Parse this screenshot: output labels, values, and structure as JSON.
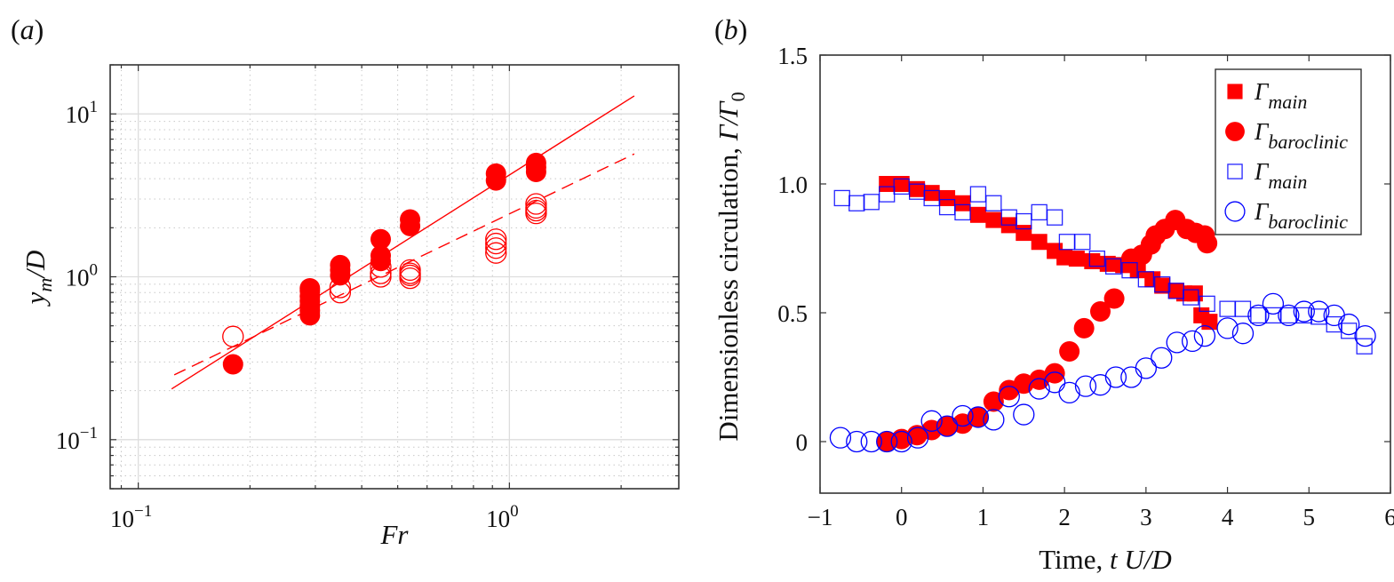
{
  "chart_data": [
    {
      "panel": "(a)",
      "type": "scatter",
      "xscale": "log",
      "yscale": "log",
      "xlabel": "Fr",
      "ylabel": "y_m/D",
      "xlim": [
        0.084,
        2.86
      ],
      "ylim": [
        0.05,
        20
      ],
      "xticks": [
        {
          "value": 0.1,
          "base": "10",
          "exp": "−1"
        },
        {
          "value": 1,
          "base": "10",
          "exp": "0"
        }
      ],
      "yticks": [
        {
          "value": 0.1,
          "base": "10",
          "exp": "−1"
        },
        {
          "value": 1,
          "base": "10",
          "exp": "0"
        },
        {
          "value": 10,
          "base": "10",
          "exp": "1"
        }
      ],
      "grid": true,
      "color": "#ff0000",
      "series": [
        {
          "name": "filled",
          "marker": "filled-circle",
          "points": [
            [
              0.18,
              0.29
            ],
            [
              0.29,
              0.58
            ],
            [
              0.29,
              0.62
            ],
            [
              0.29,
              0.66
            ],
            [
              0.29,
              0.71
            ],
            [
              0.29,
              0.76
            ],
            [
              0.29,
              0.82
            ],
            [
              0.29,
              0.85
            ],
            [
              0.35,
              1.02
            ],
            [
              0.35,
              1.1
            ],
            [
              0.35,
              1.18
            ],
            [
              0.45,
              1.25
            ],
            [
              0.45,
              1.35
            ],
            [
              0.45,
              1.7
            ],
            [
              0.54,
              2.05
            ],
            [
              0.54,
              2.25
            ],
            [
              0.92,
              3.9
            ],
            [
              0.92,
              4.3
            ],
            [
              1.18,
              4.4
            ],
            [
              1.18,
              4.7
            ],
            [
              1.18,
              5.0
            ]
          ]
        },
        {
          "name": "open",
          "marker": "open-circle",
          "points": [
            [
              0.18,
              0.43
            ],
            [
              0.35,
              0.8
            ],
            [
              0.35,
              0.86
            ],
            [
              0.45,
              1.0
            ],
            [
              0.45,
              1.05
            ],
            [
              0.45,
              1.15
            ],
            [
              0.54,
              0.98
            ],
            [
              0.54,
              1.02
            ],
            [
              0.54,
              1.05
            ],
            [
              0.54,
              1.1
            ],
            [
              0.92,
              1.4
            ],
            [
              0.92,
              1.5
            ],
            [
              0.92,
              1.6
            ],
            [
              0.92,
              1.7
            ],
            [
              1.18,
              2.45
            ],
            [
              1.18,
              2.55
            ],
            [
              1.18,
              2.65
            ],
            [
              1.18,
              2.8
            ]
          ]
        },
        {
          "name": "fit-solid",
          "type": "line",
          "style": "solid",
          "points": [
            [
              0.123,
              0.205
            ],
            [
              2.17,
              12.9
            ]
          ]
        },
        {
          "name": "fit-dashed",
          "type": "line",
          "style": "dashed",
          "points": [
            [
              0.125,
              0.25
            ],
            [
              2.17,
              5.68
            ]
          ]
        }
      ]
    },
    {
      "panel": "(b)",
      "type": "scatter",
      "xlabel": "Time, t U/D",
      "xlabel_parts": {
        "prefix": "Time, ",
        "italic": "t U/D"
      },
      "ylabel": "Dimensionless circulation, Γ/Γ0",
      "ylabel_parts": {
        "prefix": "Dimensionless circulation, ",
        "italic": "Γ/Γ",
        "sub": "0"
      },
      "xlim": [
        -1,
        6
      ],
      "ylim": [
        -0.2,
        1.5
      ],
      "xticks": [
        "−1",
        "0",
        "1",
        "2",
        "3",
        "4",
        "5",
        "6"
      ],
      "xtick_values": [
        -1,
        0,
        1,
        2,
        3,
        4,
        5,
        6
      ],
      "yticks": [
        "0",
        "0.5",
        "1.0",
        "1.5"
      ],
      "ytick_values": [
        0,
        0.5,
        1.0,
        1.5
      ],
      "grid": false,
      "legend_position": "top-right",
      "series": [
        {
          "name": "Γmain",
          "label": {
            "main": "Γ",
            "sub": "main"
          },
          "marker": "filled-square",
          "color": "#ff0000",
          "points": [
            [
              -0.18,
              1.0
            ],
            [
              0.0,
              1.0
            ],
            [
              0.19,
              0.98
            ],
            [
              0.37,
              0.965
            ],
            [
              0.56,
              0.945
            ],
            [
              0.75,
              0.925
            ],
            [
              0.94,
              0.88
            ],
            [
              1.13,
              0.86
            ],
            [
              1.32,
              0.84
            ],
            [
              1.5,
              0.81
            ],
            [
              1.69,
              0.775
            ],
            [
              1.88,
              0.74
            ],
            [
              2.0,
              0.715
            ],
            [
              2.15,
              0.71
            ],
            [
              2.34,
              0.7
            ],
            [
              2.53,
              0.69
            ],
            [
              2.72,
              0.685
            ],
            [
              2.9,
              0.665
            ],
            [
              3.08,
              0.63
            ],
            [
              3.2,
              0.605
            ],
            [
              3.37,
              0.585
            ],
            [
              3.47,
              0.575
            ],
            [
              3.6,
              0.575
            ],
            [
              3.68,
              0.49
            ],
            [
              3.78,
              0.465
            ]
          ]
        },
        {
          "name": "Γbaroclinic",
          "label": {
            "main": "Γ",
            "sub": "baroclinic"
          },
          "marker": "filled-circle",
          "color": "#ff0000",
          "points": [
            [
              -0.18,
              0.0
            ],
            [
              0.0,
              0.01
            ],
            [
              0.19,
              0.025
            ],
            [
              0.37,
              0.045
            ],
            [
              0.56,
              0.06
            ],
            [
              0.75,
              0.07
            ],
            [
              0.94,
              0.095
            ],
            [
              1.13,
              0.155
            ],
            [
              1.32,
              0.2
            ],
            [
              1.5,
              0.225
            ],
            [
              1.69,
              0.24
            ],
            [
              1.88,
              0.265
            ],
            [
              2.06,
              0.35
            ],
            [
              2.24,
              0.44
            ],
            [
              2.44,
              0.505
            ],
            [
              2.61,
              0.555
            ],
            [
              2.82,
              0.71
            ],
            [
              2.95,
              0.725
            ],
            [
              3.06,
              0.765
            ],
            [
              3.12,
              0.8
            ],
            [
              3.23,
              0.825
            ],
            [
              3.36,
              0.86
            ],
            [
              3.5,
              0.825
            ],
            [
              3.61,
              0.81
            ],
            [
              3.72,
              0.8
            ],
            [
              3.75,
              0.77
            ]
          ]
        },
        {
          "name": "Γmain (open)",
          "label": {
            "main": "Γ",
            "sub": "main"
          },
          "marker": "open-square",
          "color": "#0000ff",
          "points": [
            [
              -0.73,
              0.945
            ],
            [
              -0.55,
              0.925
            ],
            [
              -0.37,
              0.93
            ],
            [
              -0.18,
              0.96
            ],
            [
              0.0,
              0.99
            ],
            [
              0.19,
              0.97
            ],
            [
              0.37,
              0.945
            ],
            [
              0.56,
              0.91
            ],
            [
              0.75,
              0.89
            ],
            [
              0.94,
              0.96
            ],
            [
              1.13,
              0.925
            ],
            [
              1.32,
              0.87
            ],
            [
              1.5,
              0.855
            ],
            [
              1.69,
              0.89
            ],
            [
              1.88,
              0.87
            ],
            [
              2.03,
              0.775
            ],
            [
              2.22,
              0.775
            ],
            [
              2.4,
              0.71
            ],
            [
              2.6,
              0.68
            ],
            [
              2.8,
              0.665
            ],
            [
              3.0,
              0.63
            ],
            [
              3.2,
              0.61
            ],
            [
              3.37,
              0.585
            ],
            [
              3.55,
              0.56
            ],
            [
              3.75,
              0.535
            ],
            [
              4.0,
              0.515
            ],
            [
              4.19,
              0.515
            ],
            [
              4.38,
              0.49
            ],
            [
              4.56,
              0.49
            ],
            [
              4.75,
              0.49
            ],
            [
              4.94,
              0.49
            ],
            [
              5.12,
              0.485
            ],
            [
              5.31,
              0.455
            ],
            [
              5.49,
              0.43
            ],
            [
              5.68,
              0.37
            ]
          ]
        },
        {
          "name": "Γbaroclinic (open)",
          "label": {
            "main": "Γ",
            "sub": "baroclinic"
          },
          "marker": "open-circle",
          "color": "#0000ff",
          "points": [
            [
              -0.75,
              0.015
            ],
            [
              -0.55,
              0.0
            ],
            [
              -0.37,
              0.0
            ],
            [
              -0.18,
              0.0
            ],
            [
              0.0,
              0.0
            ],
            [
              0.2,
              0.015
            ],
            [
              0.37,
              0.08
            ],
            [
              0.56,
              0.06
            ],
            [
              0.75,
              0.1
            ],
            [
              0.94,
              0.095
            ],
            [
              1.13,
              0.085
            ],
            [
              1.32,
              0.175
            ],
            [
              1.5,
              0.105
            ],
            [
              1.69,
              0.205
            ],
            [
              1.88,
              0.23
            ],
            [
              2.06,
              0.19
            ],
            [
              2.26,
              0.215
            ],
            [
              2.44,
              0.22
            ],
            [
              2.63,
              0.25
            ],
            [
              2.82,
              0.25
            ],
            [
              3.0,
              0.285
            ],
            [
              3.19,
              0.325
            ],
            [
              3.38,
              0.385
            ],
            [
              3.57,
              0.39
            ],
            [
              3.72,
              0.41
            ],
            [
              4.0,
              0.44
            ],
            [
              4.19,
              0.42
            ],
            [
              4.38,
              0.49
            ],
            [
              4.56,
              0.535
            ],
            [
              4.75,
              0.49
            ],
            [
              4.94,
              0.505
            ],
            [
              5.12,
              0.505
            ],
            [
              5.31,
              0.49
            ],
            [
              5.49,
              0.455
            ],
            [
              5.69,
              0.41
            ]
          ]
        }
      ]
    }
  ]
}
